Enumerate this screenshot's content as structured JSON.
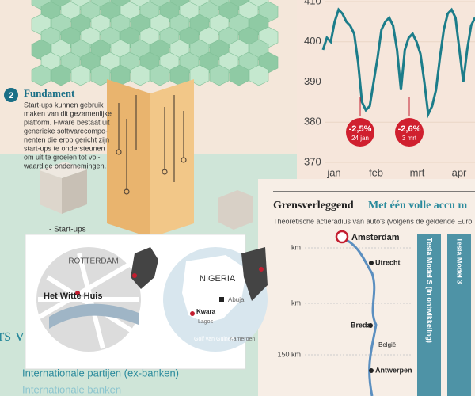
{
  "fundament": {
    "number": "2",
    "title": "Fundament",
    "body": [
      "Start-ups kunnen gebruik",
      "maken van dit gezamenlijke",
      "platform. Fiware bestaat uit",
      "generieke softwarecompo-",
      "nenten die erop gericht zijn",
      "start-ups te ondersteunen",
      "om uit te groeien tot vol-",
      "waardige ondernemingen."
    ],
    "legend": "- Start-ups"
  },
  "stock_chart": {
    "yticks": [
      410,
      400,
      390,
      380,
      370
    ],
    "ylim": [
      370,
      410
    ],
    "months": [
      "jan",
      "feb",
      "mrt",
      "apr"
    ],
    "values": [
      398,
      401,
      400,
      405,
      408,
      407,
      405,
      404,
      402,
      395,
      385,
      383,
      384,
      390,
      396,
      403,
      405,
      406,
      404,
      398,
      388,
      398,
      401,
      402,
      400,
      397,
      390,
      382,
      384,
      388,
      396,
      403,
      407,
      408,
      406,
      398,
      390,
      398,
      404,
      406
    ],
    "annotations": [
      {
        "value": "-2,5%",
        "date": "24 jan"
      },
      {
        "value": "-2,6%",
        "date": "3 mrt"
      }
    ]
  },
  "range_chart": {
    "title": "Grensverleggend",
    "title_accent": "Met één volle accu m",
    "subtitle": "Theoretische actieradius van auto's (volgens de geldende Euro",
    "axis_labels": [
      "km",
      "km",
      "150 km"
    ],
    "cities": [
      "Amsterdam",
      "Utrecht",
      "Breda",
      "België",
      "Antwerpen"
    ],
    "columns": [
      "Tesla Model S (in ontwikkeling)",
      "Tesla Model 3"
    ]
  },
  "maps": {
    "city": "ROTTERDAM",
    "place": "Het Witte Huis",
    "country": "NIGERIA",
    "capital": "Abuja",
    "region": "Kwara",
    "port": "Lagos",
    "neighbour": "Kameroen",
    "sea": "Golf van Guinee"
  },
  "footer": {
    "heading": "rs v",
    "line1": "Internationale partijen (ex-banken)",
    "line2": "Internationale banken"
  }
}
